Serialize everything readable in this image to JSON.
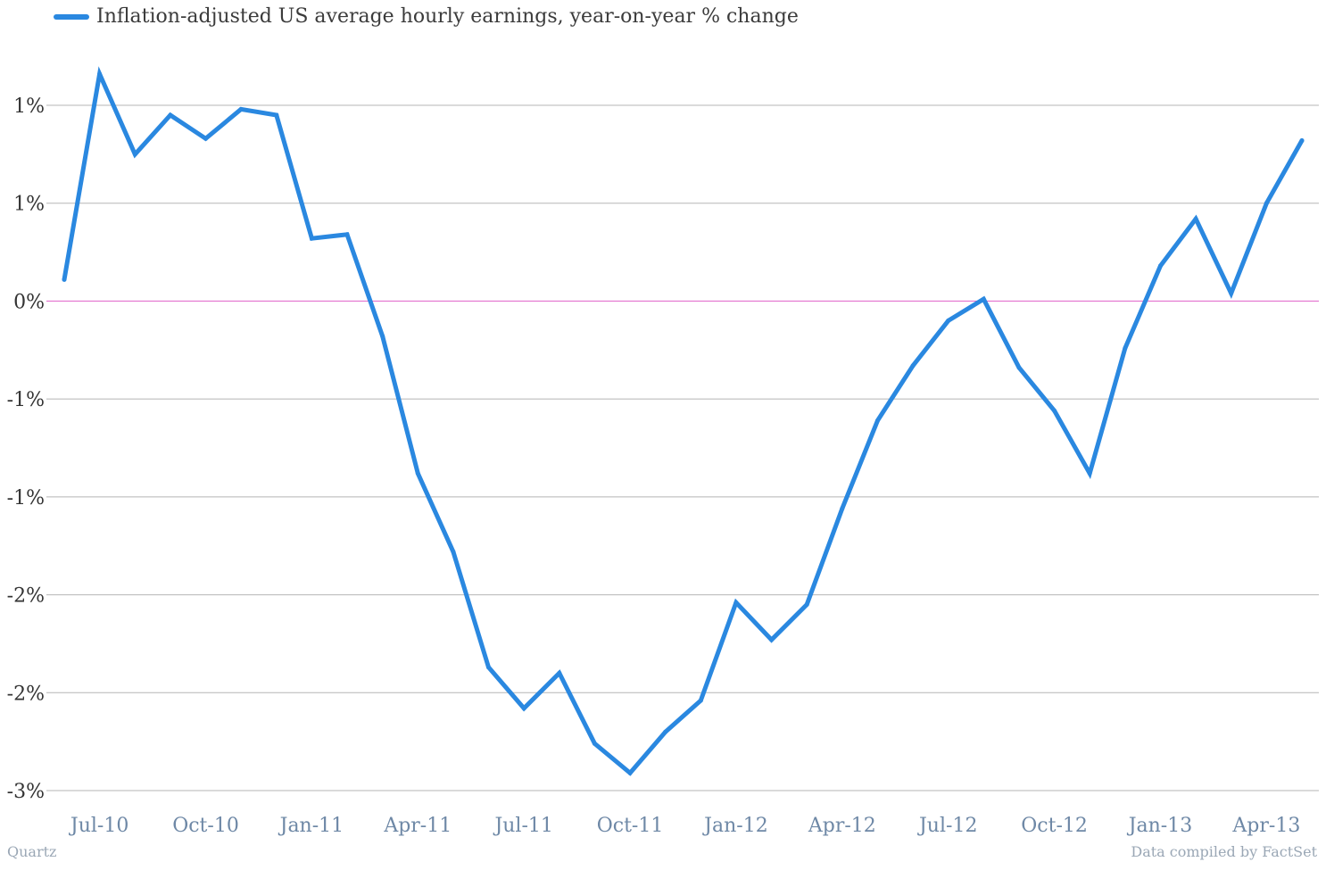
{
  "chart_data": {
    "type": "line",
    "title": "",
    "xlabel": "",
    "ylabel": "",
    "legend": {
      "placement": "top-left",
      "label": "Inflation-adjusted US average hourly earnings, year-on-year % change"
    },
    "x": [
      "Jun-10",
      "Jul-10",
      "Aug-10",
      "Sep-10",
      "Oct-10",
      "Nov-10",
      "Dec-10",
      "Jan-11",
      "Feb-11",
      "Mar-11",
      "Apr-11",
      "May-11",
      "Jun-11",
      "Jul-11",
      "Aug-11",
      "Sep-11",
      "Oct-11",
      "Nov-11",
      "Dec-11",
      "Jan-12",
      "Feb-12",
      "Mar-12",
      "Apr-12",
      "May-12",
      "Jun-12",
      "Jul-12",
      "Aug-12",
      "Sep-12",
      "Oct-12",
      "Nov-12",
      "Dec-12",
      "Jan-13",
      "Feb-13",
      "Mar-13",
      "Apr-13",
      "May-13"
    ],
    "series": [
      {
        "name": "Inflation-adjusted US average hourly earnings, year-on-year % change",
        "values": [
          0.11,
          1.16,
          0.75,
          0.95,
          0.83,
          0.98,
          0.95,
          0.32,
          0.34,
          -0.18,
          -0.88,
          -1.28,
          -1.87,
          -2.08,
          -1.9,
          -2.26,
          -2.41,
          -2.2,
          -2.04,
          -1.54,
          -1.73,
          -1.55,
          -1.06,
          -0.61,
          -0.33,
          -0.1,
          0.01,
          -0.34,
          -0.56,
          -0.88,
          -0.24,
          0.18,
          0.42,
          0.04,
          0.5,
          0.82
        ]
      }
    ],
    "ylim": [
      -2.5,
      1.5
    ],
    "yticks": [
      {
        "value": 1.0,
        "label": "1%"
      },
      {
        "value": 0.5,
        "label": "1%"
      },
      {
        "value": 0.0,
        "label": "0%"
      },
      {
        "value": -0.5,
        "label": "-1%"
      },
      {
        "value": -1.0,
        "label": "-1%"
      },
      {
        "value": -1.5,
        "label": "-2%"
      },
      {
        "value": -2.0,
        "label": "-2%"
      },
      {
        "value": -2.5,
        "label": "-3%"
      }
    ],
    "xticks": [
      {
        "value": "Jul-10",
        "label": "Jul-10"
      },
      {
        "value": "Oct-10",
        "label": "Oct-10"
      },
      {
        "value": "Jan-11",
        "label": "Jan-11"
      },
      {
        "value": "Apr-11",
        "label": "Apr-11"
      },
      {
        "value": "Jul-11",
        "label": "Jul-11"
      },
      {
        "value": "Oct-11",
        "label": "Oct-11"
      },
      {
        "value": "Jan-12",
        "label": "Jan-12"
      },
      {
        "value": "Apr-12",
        "label": "Apr-12"
      },
      {
        "value": "Jul-12",
        "label": "Jul-12"
      },
      {
        "value": "Oct-12",
        "label": "Oct-12"
      },
      {
        "value": "Jan-13",
        "label": "Jan-13"
      },
      {
        "value": "Apr-13",
        "label": "Apr-13"
      }
    ],
    "grid": true,
    "zero_line": true,
    "colors": {
      "line": "#2a88e0",
      "grid": "#b5b5b5",
      "zero_line": "#e060c8",
      "ytick": "#333333",
      "xtick": "#6e88a6"
    }
  },
  "footer": {
    "source_left": "Quartz",
    "source_right": "Data compiled by FactSet"
  }
}
